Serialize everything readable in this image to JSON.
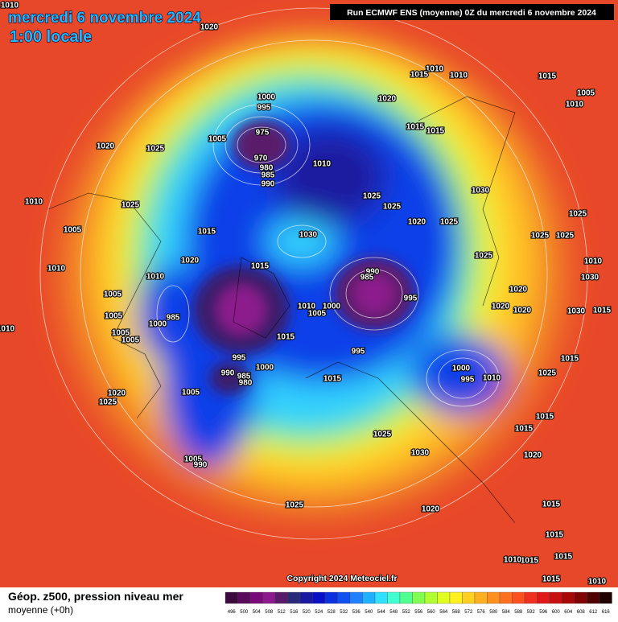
{
  "header": {
    "date": "mercredi 6 novembre 2024",
    "time": "1:00 locale",
    "run": "Run ECMWF ENS (moyenne) 0Z du mercredi 6 novembre 2024"
  },
  "copyright": "Copyright 2024 Meteociel.fr",
  "footer": {
    "title": "Géop. z500, pression niveau mer",
    "subtitle": "moyenne  (+0h)"
  },
  "legend": {
    "values": [
      496,
      500,
      504,
      508,
      512,
      516,
      520,
      524,
      528,
      532,
      536,
      540,
      544,
      548,
      552,
      556,
      560,
      564,
      568,
      572,
      576,
      580,
      584,
      588,
      592,
      596,
      600,
      604,
      608,
      612,
      616
    ],
    "colors": [
      "#3d0a3d",
      "#5a0a5a",
      "#7a0a7a",
      "#8c1a8c",
      "#5a1a6a",
      "#2a2a7a",
      "#1a1aa0",
      "#0a10c8",
      "#0a30e0",
      "#1050f0",
      "#2080ff",
      "#20b0ff",
      "#30e0ff",
      "#40ffd0",
      "#50ff90",
      "#80ff50",
      "#b0ff30",
      "#e0ff20",
      "#fff020",
      "#ffd020",
      "#ffb020",
      "#ff9020",
      "#ff7020",
      "#ff5020",
      "#f03020",
      "#e01818",
      "#c81010",
      "#a80808",
      "#800404",
      "#500202",
      "#200000"
    ]
  },
  "isobars": [
    1010,
    1020,
    1010,
    1015,
    1010,
    1015,
    1005,
    1010,
    1020,
    1015,
    1015,
    1000,
    995,
    975,
    970,
    980,
    985,
    990,
    1005,
    1010,
    1020,
    1025,
    1025,
    1025,
    1030,
    1025,
    1010,
    1025,
    1005,
    1020,
    1025,
    1025,
    1025,
    1025,
    1015,
    1030,
    1020,
    1015,
    1010,
    1010,
    990,
    985,
    995,
    1005,
    1005,
    1020,
    1020,
    1020,
    1030,
    1030,
    1015,
    1010,
    985,
    1000,
    1010,
    1000,
    1005,
    1015,
    995,
    1005,
    1005,
    1010,
    995,
    990,
    985,
    980,
    1000,
    1015,
    1000,
    995,
    1010,
    1025,
    1015,
    1020,
    1025,
    1005,
    1015,
    1015,
    1025,
    1030,
    1020,
    1005,
    990,
    1025,
    1020,
    1015,
    1015,
    1015,
    1015,
    1010,
    1015,
    1010
  ]
}
